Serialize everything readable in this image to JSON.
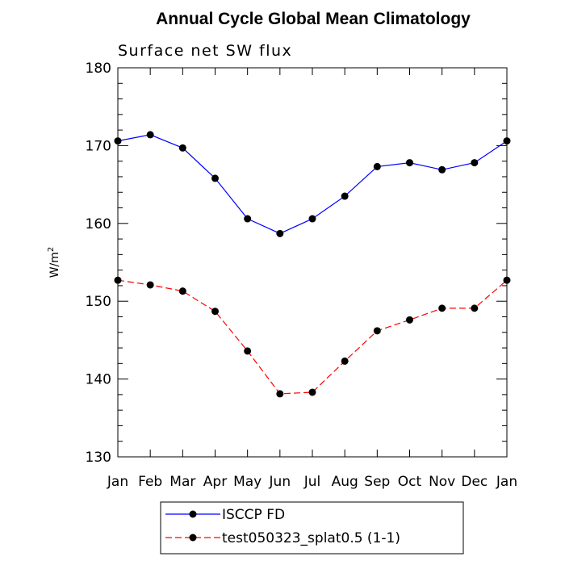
{
  "chart_data": {
    "type": "line",
    "title": "Annual Cycle Global Mean Climatology",
    "subtitle": "Surface net SW flux",
    "ylabel": "W/m",
    "ylabel_sup": "2",
    "xlabel": "",
    "categories": [
      "Jan",
      "Feb",
      "Mar",
      "Apr",
      "May",
      "Jun",
      "Jul",
      "Aug",
      "Sep",
      "Oct",
      "Nov",
      "Dec",
      "Jan"
    ],
    "ylim": [
      130,
      180
    ],
    "yticks": [
      130,
      140,
      150,
      160,
      170,
      180
    ],
    "grid": false,
    "legend_position": "bottom",
    "series": [
      {
        "name": "ISCCP FD",
        "color": "#0000ff",
        "style": "solid",
        "marker": "circle",
        "values": [
          170.6,
          171.4,
          169.7,
          165.8,
          160.6,
          158.7,
          160.6,
          163.5,
          167.3,
          167.8,
          166.9,
          167.8,
          170.6
        ]
      },
      {
        "name": "test050323_splat0.5 (1-1)",
        "color": "#ff0000",
        "style": "dashed",
        "marker": "circle",
        "values": [
          152.7,
          152.1,
          151.3,
          148.7,
          143.6,
          138.1,
          138.3,
          142.3,
          146.2,
          147.6,
          149.1,
          149.1,
          152.7
        ]
      }
    ]
  }
}
